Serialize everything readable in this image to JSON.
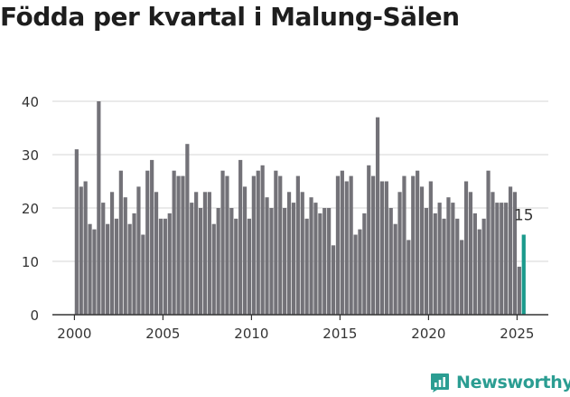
{
  "title": "Födda per kvartal i Malung-Sälen",
  "brand": {
    "name": "Newsworthy",
    "icon": "newsworthy-logo-icon",
    "color": "#2b9d92"
  },
  "colors": {
    "bar": "#737278",
    "highlight": "#1a9a8c",
    "axis": "#333333",
    "grid": "#d6d6d6"
  },
  "chart_data": {
    "type": "bar",
    "title": "Födda per kvartal i Malung-Sälen",
    "xlabel": "",
    "ylabel": "",
    "x_start": 2000,
    "periods_per_year": 4,
    "xticks": [
      2000,
      2005,
      2010,
      2015,
      2020,
      2025
    ],
    "yticks": [
      0,
      10,
      20,
      30,
      40
    ],
    "ylim": [
      0,
      40
    ],
    "grid": true,
    "highlight_last": true,
    "last_label": "15",
    "values": [
      31,
      24,
      25,
      17,
      16,
      40,
      21,
      17,
      23,
      18,
      27,
      22,
      17,
      19,
      24,
      15,
      27,
      29,
      23,
      18,
      18,
      19,
      27,
      26,
      26,
      32,
      21,
      23,
      20,
      23,
      23,
      17,
      20,
      27,
      26,
      20,
      18,
      29,
      24,
      18,
      26,
      27,
      28,
      22,
      20,
      27,
      26,
      20,
      23,
      21,
      26,
      23,
      18,
      22,
      21,
      19,
      20,
      20,
      13,
      26,
      27,
      25,
      26,
      15,
      16,
      19,
      28,
      26,
      37,
      25,
      25,
      20,
      17,
      23,
      26,
      14,
      26,
      27,
      24,
      20,
      25,
      19,
      21,
      18,
      22,
      21,
      18,
      14,
      25,
      23,
      19,
      16,
      18,
      27,
      23,
      21,
      21,
      21,
      24,
      23,
      9,
      15
    ]
  }
}
